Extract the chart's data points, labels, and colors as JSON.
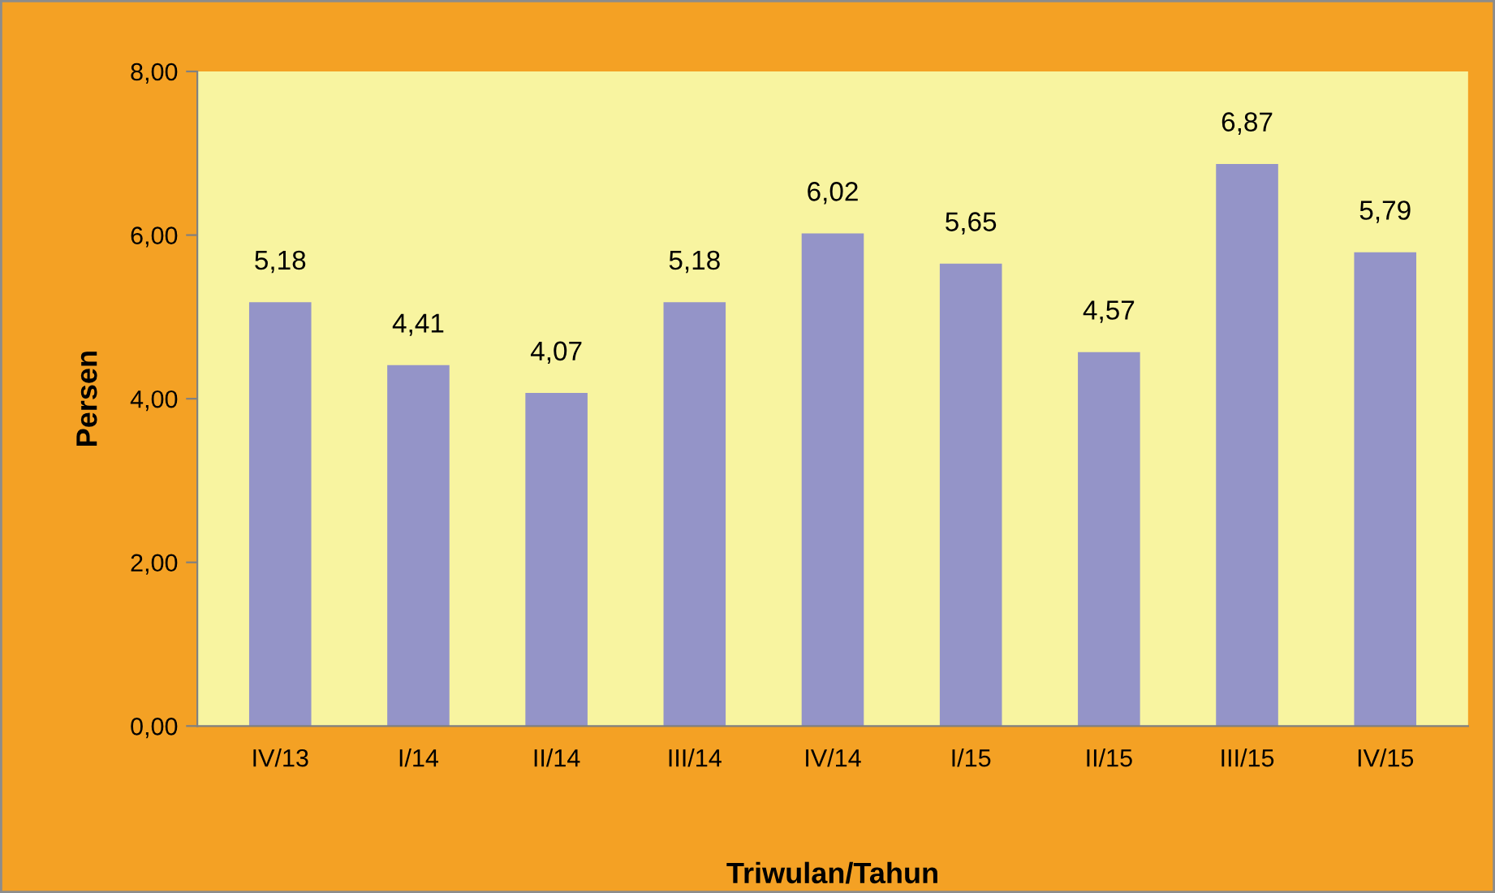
{
  "chart_data": {
    "type": "bar",
    "xlabel": "Triwulan/Tahun",
    "ylabel": "Persen",
    "categories": [
      "IV/13",
      "I/14",
      "II/14",
      "III/14",
      "IV/14",
      "I/15",
      "II/15",
      "III/15",
      "IV/15"
    ],
    "values": [
      5.18,
      4.41,
      4.07,
      5.18,
      6.02,
      5.65,
      4.57,
      6.87,
      5.79
    ],
    "value_labels": [
      "5,18",
      "4,41",
      "4,07",
      "5,18",
      "6,02",
      "5,65",
      "4,57",
      "6,87",
      "5,79"
    ],
    "color": "#9494c8",
    "ylim": [
      0,
      8
    ],
    "yticks": [
      {
        "value": 0,
        "label": "0,00"
      },
      {
        "value": 2,
        "label": "2,00"
      },
      {
        "value": 4,
        "label": "4,00"
      },
      {
        "value": 6,
        "label": "6,00"
      },
      {
        "value": 8,
        "label": "8,00"
      }
    ]
  }
}
